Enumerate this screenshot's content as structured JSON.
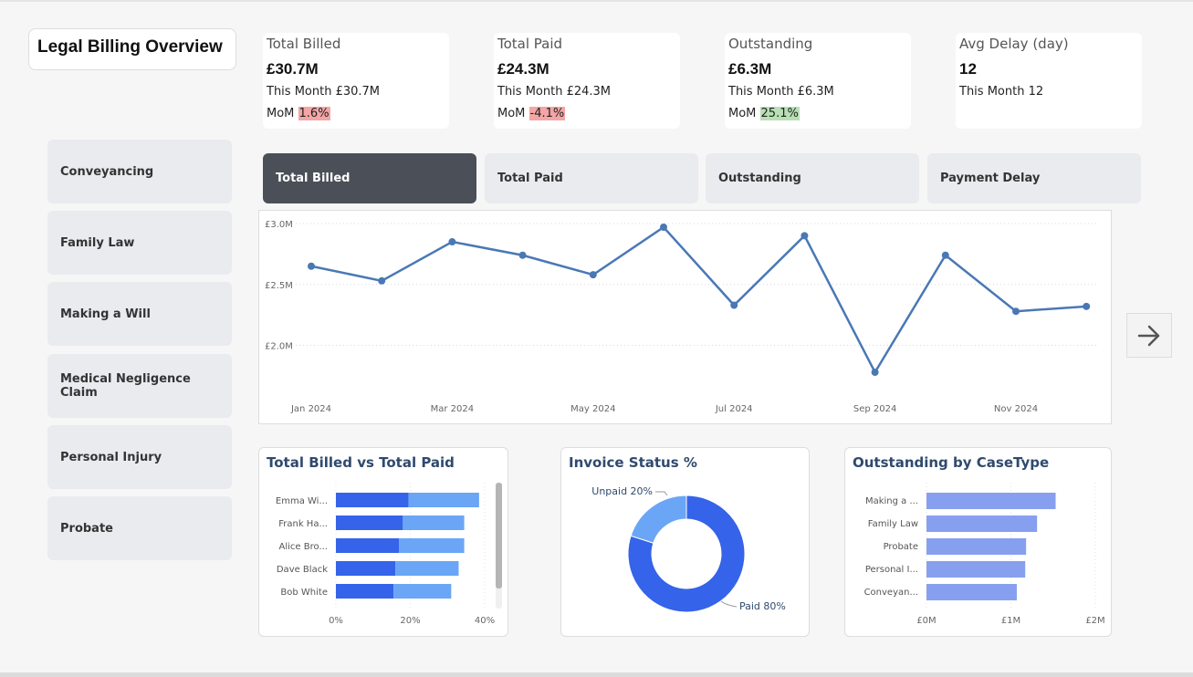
{
  "title": "Legal Billing Overview",
  "kpis": [
    {
      "label": "Total Billed",
      "value": "£30.7M",
      "month": "This Month £30.7M",
      "mom_label": "MoM",
      "mom": "1.6%",
      "mom_color": "#f4a5a5"
    },
    {
      "label": "Total Paid",
      "value": "£24.3M",
      "month": "This Month £24.3M",
      "mom_label": "MoM",
      "mom": "-4.1%",
      "mom_color": "#f4a5a5"
    },
    {
      "label": "Outstanding",
      "value": "£6.3M",
      "month": "This Month £6.3M",
      "mom_label": "MoM",
      "mom": "25.1%",
      "mom_color": "#b9dfb5"
    },
    {
      "label": "Avg Delay (day)",
      "value": "12",
      "month": "This Month 12"
    }
  ],
  "slicers": [
    "Conveyancing",
    "Family Law",
    "Making a Will",
    "Medical Negligence Claim",
    "Personal Injury",
    "Probate"
  ],
  "tabs": [
    "Total Billed",
    "Total Paid",
    "Outstanding",
    "Payment Delay"
  ],
  "active_tab": "Total Billed",
  "next_button_icon": "arrow-right-icon",
  "colors": {
    "line": "#4a78b5",
    "bar_dark": "#3563e9",
    "bar_light": "#6aa6f5",
    "bar_outstanding": "#86a0ef",
    "donut_paid": "#3563e9",
    "donut_unpaid": "#6aa6f5",
    "title": "#2f4a6e",
    "tab_active": "#4a4f58"
  },
  "chart_data": [
    {
      "type": "line",
      "x": [
        "Jan 2024",
        "Feb 2024",
        "Mar 2024",
        "Apr 2024",
        "May 2024",
        "Jun 2024",
        "Jul 2024",
        "Aug 2024",
        "Sep 2024",
        "Oct 2024",
        "Nov 2024",
        "Dec 2024"
      ],
      "x_tick_labels": [
        "Jan 2024",
        "Mar 2024",
        "May 2024",
        "Jul 2024",
        "Sep 2024",
        "Nov 2024"
      ],
      "y_tick_labels": [
        "£2.0M",
        "£2.5M",
        "£3.0M"
      ],
      "y_ticks": [
        2.0,
        2.5,
        3.0
      ],
      "values": [
        2.65,
        2.53,
        2.85,
        2.74,
        2.58,
        2.97,
        2.33,
        2.9,
        1.78,
        2.74,
        2.28,
        2.32
      ],
      "ylim": [
        1.75,
        3.0
      ],
      "grid": true
    },
    {
      "type": "bar",
      "orientation": "horizontal",
      "stacked": true,
      "title": "Total Billed vs Total Paid",
      "categories": [
        "Emma Wi...",
        "Frank Ha...",
        "Alice Bro...",
        "Dave Black",
        "Bob White"
      ],
      "series": [
        {
          "values": [
            19.5,
            18,
            17,
            16,
            15.5
          ]
        },
        {
          "values": [
            19,
            16.5,
            17.5,
            17,
            15.5
          ]
        }
      ],
      "x_tick_labels": [
        "0%",
        "20%",
        "40%"
      ],
      "xlim": [
        0,
        40
      ]
    },
    {
      "type": "pie",
      "donut": true,
      "title": "Invoice Status %",
      "slices": [
        {
          "label": "Paid 80%",
          "value": 80
        },
        {
          "label": "Unpaid 20%",
          "value": 20
        }
      ]
    },
    {
      "type": "bar",
      "orientation": "horizontal",
      "title": "Outstanding by CaseType",
      "categories": [
        "Making a ...",
        "Family Law",
        "Probate",
        "Personal I...",
        "Conveyan..."
      ],
      "values": [
        1.53,
        1.31,
        1.18,
        1.17,
        1.07
      ],
      "x_tick_labels": [
        "£0M",
        "£1M",
        "£2M"
      ],
      "xlim": [
        0,
        2
      ]
    }
  ]
}
